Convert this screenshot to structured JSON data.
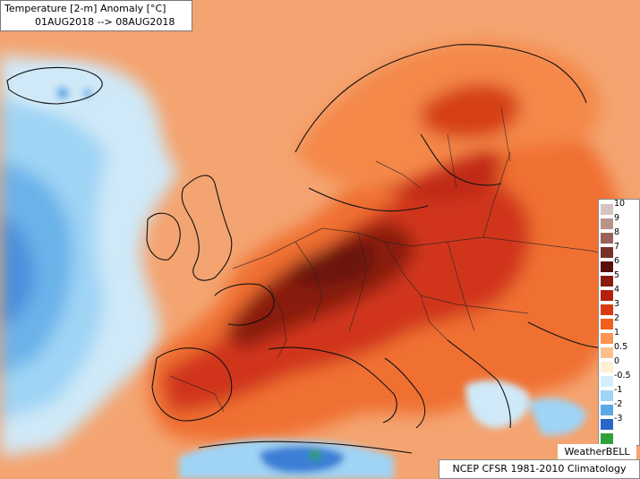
{
  "header": {
    "title": "Temperature [2-m] Anomaly   [°C]",
    "date_range": "01AUG2018 --> 08AUG2018"
  },
  "legend": {
    "stops": [
      {
        "label": "10",
        "color": "#d7c3bf"
      },
      {
        "label": "9",
        "color": "#b8938c"
      },
      {
        "label": "8",
        "color": "#98625a"
      },
      {
        "label": "7",
        "color": "#783028"
      },
      {
        "label": "6",
        "color": "#5a0f0a"
      },
      {
        "label": "5",
        "color": "#8a1a0c"
      },
      {
        "label": "4",
        "color": "#b5200c"
      },
      {
        "label": "3",
        "color": "#d93a0f"
      },
      {
        "label": "2",
        "color": "#f05e1e"
      },
      {
        "label": "1",
        "color": "#fa9450"
      },
      {
        "label": "0.5",
        "color": "#fdc08c"
      },
      {
        "label": "0",
        "color": "#fff0d2"
      },
      {
        "label": "-0.5",
        "color": "#d4eefb"
      },
      {
        "label": "-1",
        "color": "#9fd4f5"
      },
      {
        "label": "-2",
        "color": "#5aa8e6"
      },
      {
        "label": "-3",
        "color": "#2a66c8"
      },
      {
        "label": "",
        "color": "#2ea23a"
      }
    ]
  },
  "credit": "WeatherBELL",
  "footer": "NCEP CFSR 1981-2010 Climatology",
  "colors": {
    "land_warm": "#f05e1e",
    "land_hot": "#b5200c",
    "land_extreme": "#6a1208",
    "ocean_mild": "#f8a878",
    "ocean_cool": "#9fd4f5",
    "ocean_cold": "#5aa8e6",
    "coastline": "#111111"
  }
}
